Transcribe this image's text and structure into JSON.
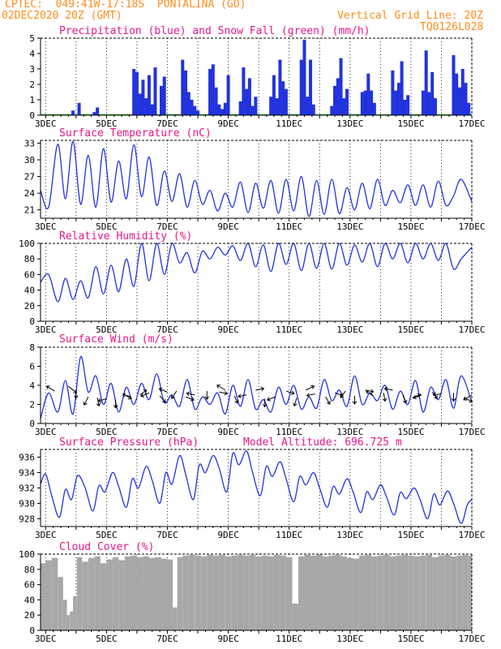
{
  "header": {
    "line1": "CPTEC:  049:41W-17:18S  PONTALINA (GO)",
    "line2": "02DEC2020 20Z (GMT)",
    "grid_note": "Vertical Grid Line: 20Z",
    "code": "TQ0126L028",
    "model_altitude": "Model Altitude: 696.725 m"
  },
  "x_tick_labels": [
    "3DEC",
    "5DEC",
    "7DEC",
    "9DEC",
    "11DEC",
    "13DEC",
    "15DEC",
    "17DEC"
  ],
  "colors": {
    "header": "#ff8c1a",
    "title": "#e8178a",
    "line": "#2233dd",
    "snow": "#22aa22",
    "cloud": "#a8a8a8",
    "arrow": "#000000"
  },
  "chart_data": [
    {
      "type": "bar",
      "title": "Precipitation (blue) and Snow Fall (green) (mm/h)",
      "ylim": [
        0,
        5
      ],
      "yticks": [
        "0",
        "1",
        "2",
        "3",
        "4",
        "5"
      ],
      "x_range_days": [
        2.833,
        17.0
      ],
      "series": [
        {
          "name": "Precipitation",
          "x": [
            3.9,
            4.1,
            4.6,
            4.7,
            5.9,
            6.0,
            6.1,
            6.2,
            6.3,
            6.4,
            6.5,
            6.6,
            6.8,
            6.9,
            7.5,
            7.6,
            7.7,
            7.8,
            7.9,
            8.0,
            8.4,
            8.5,
            8.6,
            8.7,
            8.8,
            8.9,
            9.0,
            9.4,
            9.5,
            9.6,
            9.7,
            9.8,
            9.9,
            10.4,
            10.5,
            10.6,
            10.7,
            10.8,
            10.9,
            11.4,
            11.5,
            11.6,
            11.7,
            11.8,
            12.4,
            12.5,
            12.6,
            12.7,
            12.8,
            12.9,
            13.4,
            13.5,
            13.6,
            13.7,
            13.8,
            14.4,
            14.5,
            14.6,
            14.7,
            14.8,
            14.9,
            15.4,
            15.5,
            15.6,
            15.7,
            15.8,
            16.4,
            16.5,
            16.6,
            16.7,
            16.8,
            16.9
          ],
          "values": [
            0.3,
            0.8,
            0.2,
            0.5,
            3.0,
            2.8,
            1.4,
            2.3,
            1.1,
            2.6,
            0.7,
            3.1,
            1.9,
            2.5,
            3.6,
            2.9,
            1.5,
            1.0,
            0.6,
            0.3,
            3.0,
            3.3,
            1.8,
            0.7,
            0.4,
            0.8,
            2.6,
            0.9,
            3.1,
            1.7,
            2.4,
            0.6,
            1.2,
            1.2,
            2.6,
            1.1,
            3.6,
            2.2,
            1.7,
            3.6,
            4.9,
            1.2,
            3.6,
            0.7,
            0.6,
            1.9,
            2.4,
            3.7,
            1.1,
            1.7,
            1.5,
            1.6,
            2.7,
            1.6,
            0.8,
            2.9,
            1.6,
            2.1,
            3.5,
            1.0,
            1.3,
            1.6,
            4.2,
            1.5,
            2.8,
            1.1,
            3.9,
            2.7,
            1.8,
            3.0,
            2.1,
            0.8
          ]
        },
        {
          "name": "Snow Fall",
          "x": [],
          "values": []
        }
      ]
    },
    {
      "type": "line",
      "title": "Surface Temperature (nC)",
      "ylim": [
        19.5,
        33.5
      ],
      "yticks": [
        "21",
        "24",
        "27",
        "30",
        "33"
      ],
      "series": [
        {
          "name": "Surface Temperature",
          "x": [
            2.833,
            3.1,
            3.4,
            3.65,
            3.9,
            4.15,
            4.4,
            4.65,
            4.9,
            5.15,
            5.4,
            5.65,
            5.9,
            6.15,
            6.4,
            6.65,
            6.9,
            7.15,
            7.4,
            7.65,
            7.9,
            8.15,
            8.4,
            8.65,
            8.9,
            9.15,
            9.4,
            9.65,
            9.9,
            10.15,
            10.4,
            10.65,
            10.9,
            11.15,
            11.4,
            11.65,
            11.9,
            12.15,
            12.4,
            12.65,
            12.9,
            13.15,
            13.4,
            13.65,
            13.9,
            14.15,
            14.4,
            14.65,
            14.9,
            15.15,
            15.4,
            15.65,
            15.9,
            16.15,
            16.4,
            16.65,
            17.0
          ],
          "values": [
            24.5,
            21.5,
            32.8,
            23.0,
            33.3,
            22.0,
            30.8,
            21.5,
            32.0,
            22.4,
            29.8,
            23.0,
            32.7,
            23.4,
            30.5,
            21.8,
            28.0,
            22.5,
            27.5,
            21.5,
            26.3,
            22.0,
            24.5,
            20.8,
            24.0,
            21.5,
            26.0,
            20.5,
            25.8,
            21.3,
            26.3,
            20.4,
            26.5,
            20.8,
            27.0,
            19.8,
            26.3,
            20.2,
            26.5,
            20.3,
            25.0,
            21.0,
            25.8,
            21.2,
            26.5,
            21.8,
            24.5,
            22.3,
            25.5,
            21.8,
            25.5,
            21.5,
            26.2,
            21.8,
            23.5,
            26.5,
            22.5
          ]
        }
      ]
    },
    {
      "type": "line",
      "title": "Relative Humidity (%)",
      "ylim": [
        0,
        100
      ],
      "yticks": [
        "0",
        "20",
        "40",
        "60",
        "80",
        "100"
      ],
      "series": [
        {
          "name": "Relative Humidity",
          "x": [
            2.833,
            3.1,
            3.4,
            3.65,
            3.9,
            4.15,
            4.4,
            4.65,
            4.9,
            5.15,
            5.4,
            5.65,
            5.9,
            6.15,
            6.4,
            6.65,
            6.9,
            7.15,
            7.4,
            7.65,
            7.9,
            8.15,
            8.4,
            8.65,
            8.9,
            9.15,
            9.4,
            9.65,
            9.9,
            10.15,
            10.4,
            10.65,
            10.9,
            11.15,
            11.4,
            11.65,
            11.9,
            12.15,
            12.4,
            12.65,
            12.9,
            13.15,
            13.4,
            13.65,
            13.9,
            14.15,
            14.4,
            14.65,
            14.9,
            15.15,
            15.4,
            15.65,
            15.9,
            16.15,
            16.4,
            16.65,
            17.0
          ],
          "values": [
            50,
            60,
            25,
            55,
            28,
            52,
            30,
            70,
            35,
            72,
            38,
            80,
            45,
            100,
            52,
            100,
            60,
            100,
            75,
            88,
            62,
            90,
            80,
            95,
            85,
            97,
            78,
            100,
            70,
            98,
            64,
            100,
            73,
            100,
            65,
            100,
            68,
            100,
            67,
            100,
            72,
            98,
            76,
            100,
            70,
            100,
            80,
            100,
            75,
            100,
            80,
            100,
            78,
            100,
            67,
            80,
            95
          ]
        }
      ]
    },
    {
      "type": "line",
      "title": "Surface Wind (m/s)",
      "ylim": [
        0,
        8
      ],
      "yticks": [
        "0",
        "2",
        "4",
        "6",
        "8"
      ],
      "series": [
        {
          "name": "Surface Wind",
          "x": [
            2.833,
            3.1,
            3.4,
            3.65,
            3.9,
            4.15,
            4.4,
            4.65,
            4.9,
            5.15,
            5.4,
            5.65,
            5.9,
            6.15,
            6.4,
            6.65,
            6.9,
            7.15,
            7.4,
            7.65,
            7.9,
            8.15,
            8.4,
            8.65,
            8.9,
            9.15,
            9.4,
            9.65,
            9.9,
            10.15,
            10.4,
            10.65,
            10.9,
            11.15,
            11.4,
            11.65,
            11.9,
            12.15,
            12.4,
            12.65,
            12.9,
            13.15,
            13.4,
            13.65,
            13.9,
            14.15,
            14.4,
            14.65,
            14.9,
            15.15,
            15.4,
            15.65,
            15.9,
            16.15,
            16.4,
            16.65,
            17.0
          ],
          "values": [
            0.5,
            3.2,
            1.2,
            4.5,
            1.0,
            7.0,
            3.3,
            5.0,
            2.0,
            4.2,
            1.2,
            3.8,
            2.0,
            4.2,
            2.5,
            5.2,
            2.2,
            3.0,
            1.8,
            4.6,
            1.5,
            2.8,
            2.0,
            3.2,
            1.0,
            4.0,
            1.8,
            4.6,
            1.5,
            2.5,
            1.2,
            3.8,
            2.0,
            4.0,
            1.5,
            2.8,
            1.6,
            4.6,
            2.4,
            3.5,
            1.8,
            5.0,
            2.0,
            3.2,
            2.4,
            4.0,
            1.5,
            3.4,
            2.0,
            4.5,
            1.2,
            3.8,
            2.5,
            4.6,
            1.6,
            5.0,
            2.2
          ]
        },
        {
          "name": "Wind vectors",
          "x": [
            3.3,
            3.75,
            4.0,
            4.4,
            4.7,
            5.0,
            5.3,
            5.55,
            5.8,
            6.1,
            6.4,
            6.75,
            7.0,
            7.3,
            7.6,
            7.9,
            8.3,
            8.7,
            8.9,
            9.2,
            9.6,
            9.9,
            10.2,
            10.55,
            10.9,
            11.25,
            11.55,
            11.85,
            12.2,
            12.5,
            12.85,
            13.15,
            13.5,
            13.75,
            14.1,
            14.4,
            14.75,
            15.05,
            15.35,
            15.7,
            16.0,
            16.4,
            16.75,
            17.0
          ],
          "values": [
            3.4,
            3.9,
            3.5,
            2.8,
            2.7,
            2.6,
            2.5,
            3.1,
            2.8,
            3.0,
            3.2,
            2.9,
            3.3,
            3.4,
            2.8,
            3.0,
            3.4,
            3.3,
            3.5,
            2.9,
            3.0,
            3.5,
            2.6,
            2.8,
            3.4,
            2.7,
            3.5,
            3.1,
            2.8,
            3.2,
            3.4,
            2.9,
            3.5,
            2.9,
            3.2,
            3.5,
            3.0,
            2.7,
            3.0,
            3.3,
            3.1,
            3.2,
            2.7,
            3.0
          ]
        }
      ]
    },
    {
      "type": "line",
      "title": "Surface Pressure (hPa)",
      "ylim": [
        927,
        937
      ],
      "yticks": [
        "928",
        "930",
        "932",
        "934",
        "936"
      ],
      "series": [
        {
          "name": "Surface Pressure",
          "x": [
            2.833,
            3.0,
            3.2,
            3.45,
            3.65,
            3.85,
            4.05,
            4.3,
            4.55,
            4.75,
            4.95,
            5.2,
            5.4,
            5.65,
            5.85,
            6.05,
            6.3,
            6.5,
            6.75,
            6.95,
            7.15,
            7.4,
            7.6,
            7.85,
            8.05,
            8.25,
            8.5,
            8.7,
            8.95,
            9.15,
            9.35,
            9.6,
            9.8,
            10.05,
            10.25,
            10.45,
            10.7,
            10.9,
            11.15,
            11.35,
            11.55,
            11.8,
            12.0,
            12.25,
            12.45,
            12.65,
            12.9,
            13.1,
            13.35,
            13.55,
            13.75,
            14.0,
            14.2,
            14.45,
            14.65,
            14.85,
            15.1,
            15.3,
            15.55,
            15.75,
            15.95,
            16.2,
            16.4,
            16.65,
            16.85,
            17.0
          ],
          "values": [
            932.5,
            933.8,
            931.0,
            928.2,
            931.8,
            930.5,
            933.6,
            932.0,
            929.0,
            932.3,
            931.5,
            934.0,
            932.2,
            929.5,
            933.2,
            932.0,
            934.8,
            933.0,
            930.0,
            934.0,
            932.5,
            936.2,
            933.8,
            930.5,
            935.0,
            934.0,
            936.2,
            934.6,
            931.5,
            936.5,
            935.0,
            936.8,
            934.0,
            931.0,
            934.8,
            933.5,
            935.4,
            933.2,
            930.2,
            933.5,
            932.4,
            934.0,
            932.0,
            929.5,
            932.2,
            931.2,
            933.2,
            931.5,
            928.8,
            931.5,
            930.5,
            932.4,
            930.8,
            928.5,
            931.4,
            930.6,
            932.0,
            930.5,
            928.0,
            931.2,
            929.8,
            931.6,
            930.0,
            927.4,
            929.8,
            930.5
          ]
        }
      ]
    },
    {
      "type": "bar",
      "title": "Cloud Cover (%)",
      "ylim": [
        0,
        100
      ],
      "yticks": [
        "0",
        "20",
        "40",
        "60",
        "80",
        "100"
      ],
      "series": [
        {
          "name": "Cloud Cover",
          "x": [
            2.9,
            3.1,
            3.3,
            3.5,
            3.65,
            3.75,
            3.85,
            3.95,
            4.1,
            4.3,
            4.5,
            4.7,
            4.9,
            5.1,
            5.3,
            5.5,
            5.7,
            5.9,
            6.1,
            6.3,
            6.5,
            6.7,
            6.9,
            7.1,
            7.25,
            7.4,
            7.6,
            7.8,
            8.0,
            8.2,
            8.4,
            8.6,
            8.8,
            9.0,
            9.2,
            9.4,
            9.6,
            9.8,
            10.0,
            10.2,
            10.4,
            10.6,
            10.8,
            11.0,
            11.2,
            11.4,
            11.6,
            11.8,
            12.0,
            12.2,
            12.4,
            12.6,
            12.8,
            13.0,
            13.2,
            13.4,
            13.6,
            13.8,
            14.0,
            14.2,
            14.4,
            14.6,
            14.8,
            15.0,
            15.2,
            15.4,
            15.6,
            15.8,
            16.0,
            16.2,
            16.4,
            16.6,
            16.8,
            16.95
          ],
          "values": [
            88,
            92,
            95,
            70,
            40,
            20,
            25,
            45,
            96,
            90,
            95,
            97,
            88,
            93,
            96,
            92,
            97,
            98,
            96,
            97,
            95,
            96,
            94,
            93,
            30,
            96,
            98,
            99,
            98,
            97,
            99,
            98,
            99,
            97,
            98,
            99,
            98,
            99,
            97,
            98,
            97,
            99,
            98,
            96,
            35,
            97,
            99,
            98,
            99,
            97,
            98,
            99,
            97,
            95,
            94,
            98,
            99,
            97,
            98,
            99,
            97,
            98,
            99,
            98,
            97,
            98,
            99,
            96,
            98,
            99,
            97,
            98,
            99,
            98
          ]
        }
      ]
    }
  ]
}
